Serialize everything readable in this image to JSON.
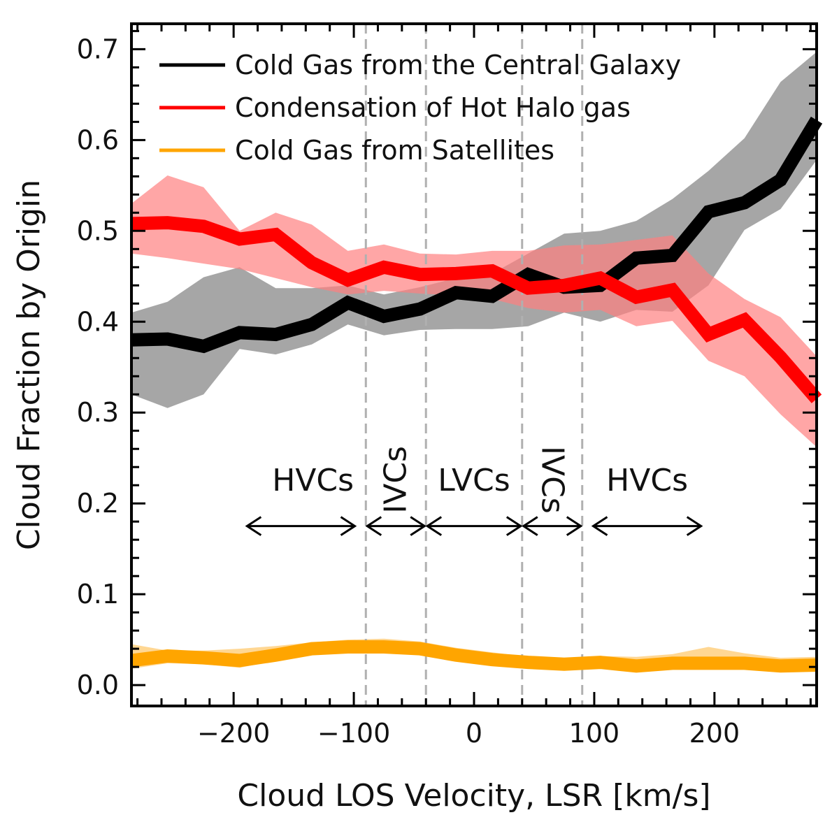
{
  "chart_data": {
    "type": "line",
    "title": "",
    "xlabel": "Cloud LOS Velocity, LSR [km/s]",
    "ylabel": "Cloud Fraction by Origin",
    "xlim": [
      -285,
      285
    ],
    "ylim": [
      -0.023,
      0.728
    ],
    "xticks": [
      -200,
      -100,
      0,
      100,
      200
    ],
    "xtick_labels": [
      "−200",
      "−100",
      "0",
      "100",
      "200"
    ],
    "yticks": [
      0.0,
      0.1,
      0.2,
      0.3,
      0.4,
      0.5,
      0.6,
      0.7
    ],
    "ytick_labels": [
      "0.0",
      "0.1",
      "0.2",
      "0.3",
      "0.4",
      "0.5",
      "0.6",
      "0.7"
    ],
    "grid": false,
    "legend_position": "top-left",
    "x": [
      -285,
      -255,
      -225,
      -195,
      -165,
      -135,
      -105,
      -75,
      -45,
      -15,
      15,
      45,
      75,
      105,
      135,
      165,
      195,
      225,
      255,
      285
    ],
    "series": [
      {
        "name": "Cold Gas from the Central Galaxy",
        "color": "#000000",
        "band_color": "#808080",
        "values": [
          0.38,
          0.381,
          0.373,
          0.388,
          0.386,
          0.397,
          0.421,
          0.406,
          0.414,
          0.432,
          0.428,
          0.452,
          0.438,
          0.44,
          0.47,
          0.473,
          0.521,
          0.531,
          0.556,
          0.622
        ],
        "lower": [
          0.32,
          0.305,
          0.32,
          0.37,
          0.364,
          0.375,
          0.397,
          0.385,
          0.391,
          0.392,
          0.392,
          0.395,
          0.41,
          0.4,
          0.413,
          0.411,
          0.44,
          0.501,
          0.524,
          0.578
        ],
        "upper": [
          0.41,
          0.422,
          0.449,
          0.46,
          0.437,
          0.437,
          0.44,
          0.43,
          0.438,
          0.448,
          0.453,
          0.475,
          0.497,
          0.5,
          0.511,
          0.535,
          0.566,
          0.602,
          0.664,
          0.697
        ]
      },
      {
        "name": "Condensation of Hot Halo gas",
        "color": "#ff0000",
        "band_color": "#ff8080",
        "values": [
          0.508,
          0.509,
          0.505,
          0.491,
          0.496,
          0.465,
          0.446,
          0.46,
          0.452,
          0.453,
          0.456,
          0.437,
          0.44,
          0.448,
          0.427,
          0.435,
          0.386,
          0.402,
          0.361,
          0.315
        ],
        "lower": [
          0.475,
          0.47,
          0.464,
          0.458,
          0.448,
          0.438,
          0.43,
          0.434,
          0.431,
          0.429,
          0.425,
          0.415,
          0.41,
          0.413,
          0.395,
          0.401,
          0.357,
          0.34,
          0.298,
          0.262
        ],
        "upper": [
          0.53,
          0.561,
          0.548,
          0.5,
          0.52,
          0.507,
          0.478,
          0.485,
          0.475,
          0.474,
          0.478,
          0.478,
          0.484,
          0.485,
          0.49,
          0.495,
          0.453,
          0.425,
          0.405,
          0.362
        ]
      },
      {
        "name": "Cold Gas from Satellites",
        "color": "#ffa500",
        "band_color": "#ffd080",
        "values": [
          0.027,
          0.032,
          0.03,
          0.027,
          0.033,
          0.04,
          0.042,
          0.042,
          0.04,
          0.033,
          0.028,
          0.025,
          0.023,
          0.025,
          0.021,
          0.024,
          0.024,
          0.024,
          0.021,
          0.022
        ],
        "lower": [
          0.018,
          0.024,
          0.023,
          0.019,
          0.027,
          0.033,
          0.036,
          0.036,
          0.033,
          0.026,
          0.022,
          0.019,
          0.018,
          0.02,
          0.015,
          0.018,
          0.018,
          0.018,
          0.015,
          0.016
        ],
        "upper": [
          0.045,
          0.038,
          0.038,
          0.04,
          0.043,
          0.047,
          0.05,
          0.051,
          0.048,
          0.041,
          0.036,
          0.031,
          0.029,
          0.032,
          0.031,
          0.034,
          0.042,
          0.035,
          0.03,
          0.031
        ]
      }
    ],
    "vlines": [
      -90,
      -40,
      40,
      90
    ],
    "regions": [
      {
        "label": "HVCs",
        "from": -190,
        "to": -98,
        "label_x": -134,
        "label_y": 0.214,
        "rotation": 0
      },
      {
        "label": "IVCs",
        "from": -90,
        "to": -40,
        "label_x": -65,
        "label_y": 0.226,
        "rotation": -90
      },
      {
        "label": "LVCs",
        "from": -40,
        "to": 40,
        "label_x": 0,
        "label_y": 0.214,
        "rotation": 0
      },
      {
        "label": "IVCs",
        "from": 40,
        "to": 90,
        "label_x": 65,
        "label_y": 0.226,
        "rotation": 90
      },
      {
        "label": "HVCs",
        "from": 98,
        "to": 190,
        "label_x": 144,
        "label_y": 0.214,
        "rotation": 0
      }
    ],
    "region_arrow_y": 0.175
  }
}
